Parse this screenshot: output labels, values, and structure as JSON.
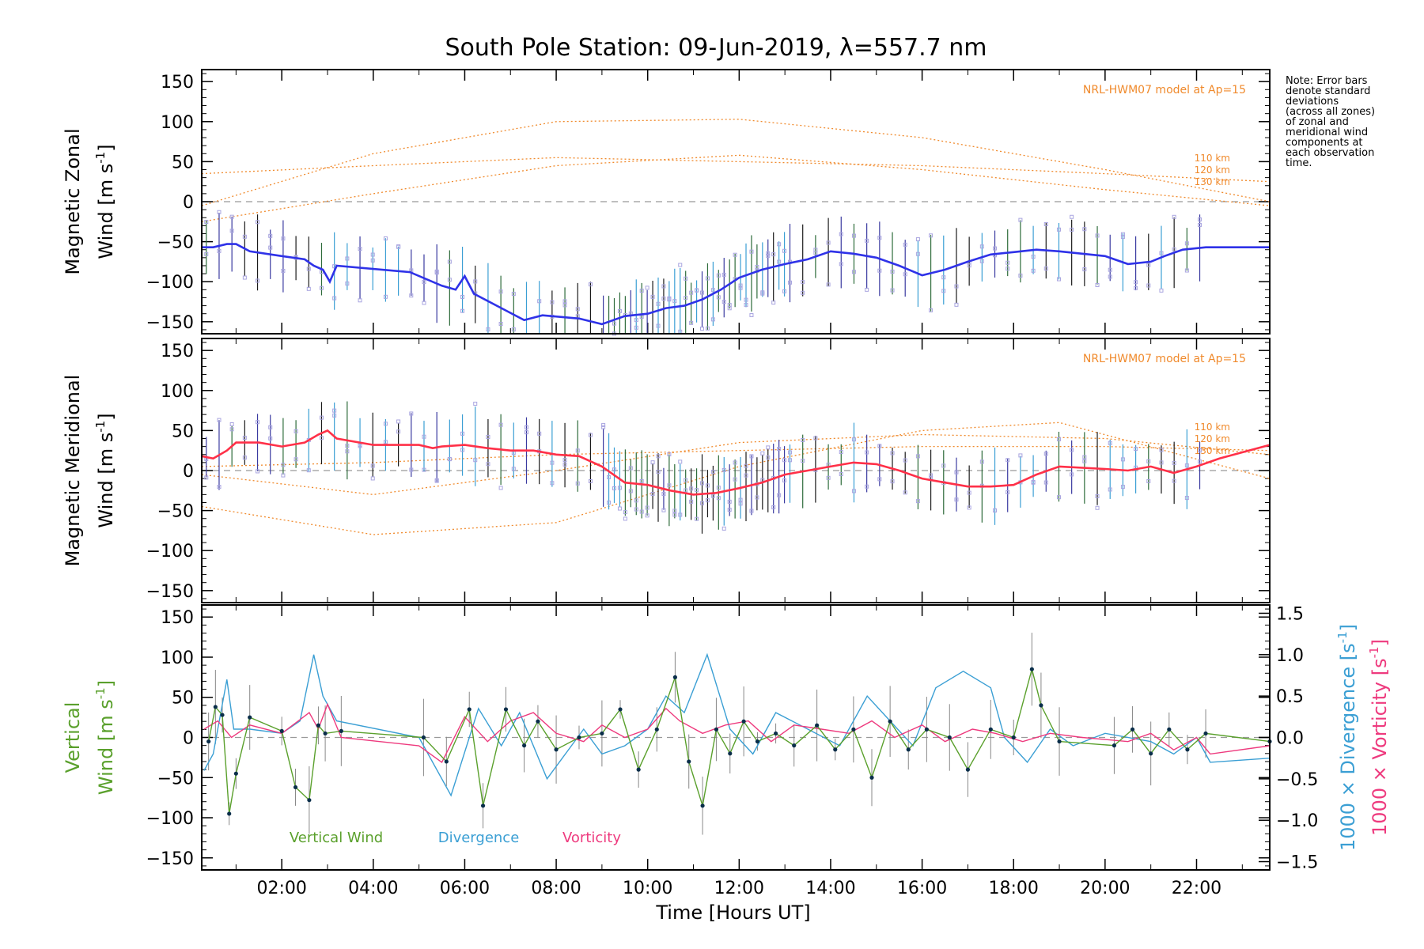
{
  "chart_data": {
    "type": "line",
    "title": "South Pole Station: 09-Jun-2019, λ=557.7 nm",
    "xlabel": "Time [Hours UT]",
    "xlim": [
      0.25,
      23.6
    ],
    "x_ticks": [
      2,
      4,
      6,
      8,
      10,
      12,
      14,
      16,
      18,
      20,
      22
    ],
    "x_tick_labels": [
      "02:00",
      "04:00",
      "06:00",
      "08:00",
      "10:00",
      "12:00",
      "14:00",
      "16:00",
      "18:00",
      "20:00",
      "22:00"
    ],
    "note": [
      "Note: Error bars",
      "denote standard",
      "deviations",
      "(across all zones)",
      "of zonal and",
      "meridional wind",
      "components at",
      "each observation",
      "time."
    ],
    "panels": [
      {
        "name": "zonal",
        "ylabel_line1": "Magnetic Zonal",
        "ylabel_line2": "Wind [m s⁻¹]",
        "ylim": [
          -165,
          165
        ],
        "y_ticks": [
          -150,
          -100,
          -50,
          0,
          50,
          100,
          150
        ],
        "model_label": "NRL-HWM07 model at Ap=15",
        "altitude_labels": [
          "110 km",
          "120 km",
          "130 km"
        ],
        "series": {
          "name": "Zonal wind",
          "color": "#2f32e8",
          "x": [
            0.25,
            0.5,
            0.8,
            1.0,
            1.3,
            2.0,
            2.5,
            2.7,
            2.9,
            3.05,
            3.2,
            4.8,
            5.5,
            5.8,
            6.0,
            6.2,
            7.3,
            7.7,
            8.5,
            9.0,
            9.5,
            10.0,
            10.4,
            10.8,
            11.2,
            11.6,
            12.0,
            12.5,
            13.0,
            13.5,
            14.0,
            14.5,
            15.0,
            15.5,
            16.0,
            16.5,
            17.0,
            17.5,
            18.0,
            18.5,
            19.0,
            20.0,
            20.5,
            21.0,
            21.3,
            21.7,
            22.2,
            23.6
          ],
          "y": [
            -57,
            -57,
            -53,
            -53,
            -62,
            -68,
            -72,
            -80,
            -85,
            -100,
            -80,
            -88,
            -105,
            -110,
            -93,
            -115,
            -148,
            -142,
            -146,
            -153,
            -143,
            -140,
            -133,
            -130,
            -122,
            -110,
            -95,
            -85,
            -78,
            -72,
            -62,
            -65,
            -70,
            -80,
            -92,
            -85,
            -75,
            -66,
            -63,
            -60,
            -62,
            -68,
            -78,
            -75,
            -68,
            -60,
            -57,
            -57
          ]
        },
        "models": [
          {
            "label": "110 km",
            "x": [
              0.25,
              4,
              8,
              12,
              16,
              20,
              23.6
            ],
            "y": [
              -5,
              60,
              100,
              103,
              80,
              40,
              0
            ]
          },
          {
            "label": "120 km",
            "x": [
              0.25,
              4,
              8,
              12,
              16,
              20,
              23.6
            ],
            "y": [
              35,
              45,
              55,
              50,
              45,
              35,
              25
            ]
          },
          {
            "label": "130 km",
            "x": [
              0.25,
              4,
              8,
              12,
              16,
              20,
              23.6
            ],
            "y": [
              -25,
              10,
              45,
              58,
              40,
              15,
              -5
            ]
          }
        ]
      },
      {
        "name": "meridional",
        "ylabel_line1": "Magnetic Meridional",
        "ylabel_line2": "Wind [m s⁻¹]",
        "ylim": [
          -165,
          165
        ],
        "y_ticks": [
          -150,
          -100,
          -50,
          0,
          50,
          100,
          150
        ],
        "model_label": "NRL-HWM07 model at Ap=15",
        "altitude_labels": [
          "110 km",
          "120 km",
          "130 km"
        ],
        "series": {
          "name": "Meridional wind",
          "color": "#ff3048",
          "x": [
            0.25,
            0.5,
            0.8,
            1.0,
            1.5,
            2.0,
            2.5,
            2.8,
            3.0,
            3.2,
            4.0,
            5.0,
            5.3,
            5.5,
            6.0,
            6.5,
            7.0,
            7.5,
            8.0,
            8.5,
            9.0,
            9.5,
            10.0,
            10.5,
            11.0,
            11.5,
            12.0,
            12.5,
            13.0,
            13.5,
            14.0,
            14.5,
            15.0,
            15.5,
            16.0,
            16.5,
            17.0,
            17.5,
            18.0,
            18.5,
            19.0,
            20.0,
            20.5,
            21.0,
            21.5,
            22.0,
            22.5,
            23.6
          ],
          "y": [
            18,
            15,
            25,
            35,
            35,
            30,
            35,
            45,
            50,
            40,
            32,
            32,
            28,
            30,
            32,
            28,
            25,
            25,
            20,
            18,
            5,
            -15,
            -18,
            -25,
            -30,
            -28,
            -22,
            -15,
            -5,
            0,
            5,
            10,
            8,
            0,
            -10,
            -15,
            -20,
            -20,
            -18,
            -5,
            5,
            2,
            0,
            5,
            -3,
            5,
            15,
            32
          ]
        },
        "models": [
          {
            "label": "110 km",
            "x": [
              0.25,
              4,
              8,
              12,
              16,
              19,
              23.6
            ],
            "y": [
              -45,
              -80,
              -65,
              5,
              50,
              60,
              -10
            ]
          },
          {
            "label": "120 km",
            "x": [
              0.25,
              4,
              8,
              12,
              16,
              20,
              23.6
            ],
            "y": [
              -5,
              -30,
              0,
              35,
              45,
              40,
              20
            ]
          },
          {
            "label": "130 km",
            "x": [
              0.25,
              4,
              8,
              12,
              16,
              20,
              23.6
            ],
            "y": [
              5,
              10,
              20,
              25,
              30,
              30,
              25
            ]
          }
        ]
      },
      {
        "name": "vertical",
        "ylabel_line1": "Vertical",
        "ylabel_line2": "Wind [m s⁻¹]",
        "ylim": [
          -165,
          165
        ],
        "y_ticks": [
          -150,
          -100,
          -50,
          0,
          50,
          100,
          150
        ],
        "y2_label_div": "1000 × Divergence [s⁻¹]",
        "y2_label_vor": "1000 × Vorticity [s⁻¹]",
        "y2lim": [
          -1.6,
          1.6
        ],
        "y2_ticks": [
          -1.5,
          -1.0,
          -0.5,
          0.0,
          0.5,
          1.0,
          1.5
        ],
        "y2_tick_labels": [
          "−1.5",
          "−1.0",
          "−0.5",
          "0.0",
          "0.5",
          "1.0",
          "1.5"
        ],
        "legend": [
          "Vertical Wind",
          "Divergence",
          "Vorticity"
        ],
        "series": [
          {
            "name": "Vertical Wind",
            "color": "#5aa02c",
            "x": [
              0.4,
              0.55,
              0.7,
              0.85,
              1.0,
              1.3,
              2.0,
              2.3,
              2.6,
              2.8,
              2.95,
              3.3,
              5.1,
              5.6,
              6.1,
              6.4,
              6.9,
              7.3,
              7.6,
              8.0,
              8.5,
              9.0,
              9.4,
              9.8,
              10.2,
              10.6,
              10.9,
              11.2,
              11.5,
              11.8,
              12.1,
              12.4,
              12.8,
              13.2,
              13.7,
              14.1,
              14.5,
              14.9,
              15.3,
              15.7,
              16.1,
              16.6,
              17.0,
              17.5,
              18.0,
              18.4,
              18.6,
              19.0,
              20.2,
              20.6,
              21.0,
              21.4,
              21.8,
              22.2,
              23.6
            ],
            "y": [
              -5,
              38,
              28,
              -95,
              -45,
              25,
              8,
              -62,
              -78,
              15,
              5,
              8,
              0,
              -30,
              35,
              -85,
              35,
              -10,
              20,
              -15,
              0,
              5,
              35,
              -40,
              10,
              75,
              -30,
              -85,
              10,
              -20,
              20,
              -5,
              5,
              -10,
              15,
              -15,
              10,
              -50,
              20,
              -15,
              10,
              0,
              -40,
              10,
              0,
              85,
              40,
              -5,
              -10,
              10,
              -20,
              10,
              -15,
              5,
              -5
            ]
          },
          {
            "name": "Divergence",
            "color": "#3b9fd4",
            "x": [
              0.3,
              0.5,
              0.8,
              0.95,
              1.3,
              2.0,
              2.4,
              2.7,
              2.9,
              3.2,
              5.0,
              5.7,
              6.3,
              6.8,
              7.2,
              7.8,
              8.6,
              9.0,
              9.5,
              10.0,
              10.4,
              10.8,
              11.3,
              11.8,
              12.3,
              12.8,
              13.5,
              14.2,
              14.8,
              15.3,
              15.8,
              16.3,
              16.9,
              17.5,
              17.8,
              18.3,
              18.8,
              19.3,
              20.0,
              21.0,
              21.5,
              22.0,
              22.3,
              23.6
            ],
            "y": [
              -0.4,
              -0.2,
              0.7,
              0.1,
              0.1,
              0.05,
              0.2,
              1.0,
              0.5,
              0.2,
              0.0,
              -0.7,
              0.35,
              -0.1,
              0.3,
              -0.5,
              0.1,
              -0.2,
              -0.1,
              0.1,
              0.5,
              0.3,
              1.0,
              0.1,
              -0.2,
              0.3,
              0.1,
              -0.1,
              0.5,
              0.2,
              -0.1,
              0.6,
              0.8,
              0.6,
              0.0,
              -0.3,
              0.1,
              -0.1,
              0.05,
              -0.05,
              -0.2,
              0.0,
              -0.3,
              -0.25
            ]
          },
          {
            "name": "Vorticity",
            "color": "#ee3a7e",
            "x": [
              0.3,
              0.6,
              0.9,
              1.3,
              2.0,
              2.6,
              2.8,
              3.0,
              3.3,
              5.0,
              5.5,
              6.0,
              6.5,
              7.0,
              7.5,
              8.0,
              8.6,
              9.0,
              9.5,
              10.0,
              10.4,
              10.7,
              11.2,
              11.7,
              12.2,
              12.7,
              13.2,
              13.8,
              14.4,
              14.9,
              15.4,
              16.0,
              16.5,
              17.1,
              17.6,
              18.2,
              18.8,
              19.5,
              20.5,
              21.0,
              21.5,
              22.0,
              22.3,
              23.6
            ],
            "y": [
              0.1,
              0.2,
              0.0,
              0.15,
              0.05,
              0.3,
              0.1,
              0.4,
              0.0,
              -0.1,
              -0.3,
              0.25,
              -0.05,
              0.2,
              0.3,
              0.05,
              -0.05,
              0.15,
              0.0,
              0.1,
              0.35,
              0.2,
              0.05,
              0.15,
              0.2,
              -0.05,
              0.15,
              0.1,
              0.05,
              0.2,
              0.0,
              0.15,
              -0.05,
              0.1,
              0.05,
              -0.05,
              0.05,
              0.0,
              -0.05,
              0.05,
              -0.15,
              0.0,
              -0.2,
              -0.1
            ]
          }
        ]
      }
    ]
  }
}
